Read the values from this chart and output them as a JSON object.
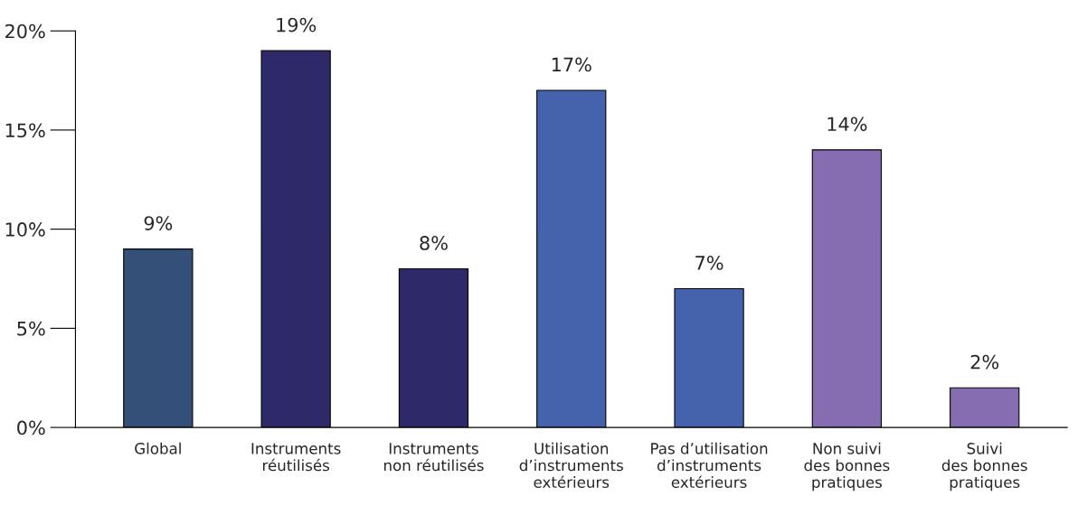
{
  "chart_data": {
    "type": "bar",
    "categories": [
      "Global",
      "Instruments\nréutilisés",
      "Instruments\nnon réutilisés",
      "Utilisation\nd’instruments\nextérieurs",
      "Pas d’utilisation\nd’instruments\nextérieurs",
      "Non suivi\ndes bonnes\npratiques",
      "Suivi\ndes bonnes\npratiques"
    ],
    "values": [
      9,
      19,
      8,
      17,
      7,
      14,
      2
    ],
    "colors": [
      "#344f78",
      "#2e2a6a",
      "#2e2a6a",
      "#4562ad",
      "#4562ad",
      "#866cb0",
      "#866cb0"
    ],
    "value_labels": [
      "9%",
      "19%",
      "8%",
      "17%",
      "7%",
      "14%",
      "2%"
    ],
    "ylim": [
      0,
      20
    ],
    "yticks": [
      {
        "value": 0,
        "label": "0%"
      },
      {
        "value": 5,
        "label": "5%"
      },
      {
        "value": 10,
        "label": "10%"
      },
      {
        "value": 15,
        "label": "15%"
      },
      {
        "value": 20,
        "label": "20%"
      }
    ],
    "grid": false,
    "legend": false
  }
}
